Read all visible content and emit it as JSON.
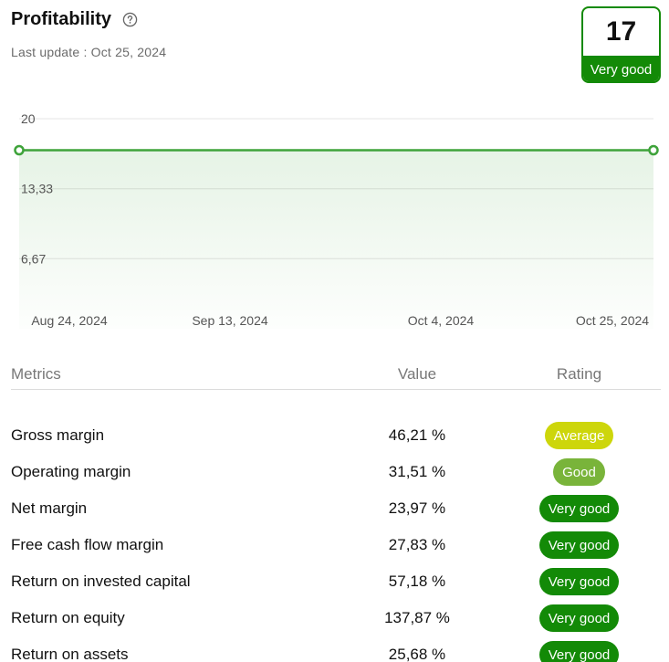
{
  "header": {
    "title": "Profitability",
    "last_update": "Last update : Oct 25, 2024"
  },
  "score": {
    "value": "17",
    "label": "Very good"
  },
  "chart_data": {
    "type": "area",
    "x": [
      "Aug 24, 2024",
      "Oct 25, 2024"
    ],
    "values": [
      17,
      17
    ],
    "x_ticks": [
      "Aug 24, 2024",
      "Sep 13, 2024",
      "Oct 4, 2024",
      "Oct 25, 2024"
    ],
    "y_ticks": [
      "20",
      "13,33",
      "6,67"
    ],
    "ylim": [
      0,
      20
    ],
    "grid": true,
    "color": "#3ea33a"
  },
  "table": {
    "headers": {
      "metric": "Metrics",
      "value": "Value",
      "rating": "Rating"
    },
    "rows": [
      {
        "metric": "Gross margin",
        "value": "46,21 %",
        "rating": "Average",
        "color": "#cdd60b"
      },
      {
        "metric": "Operating margin",
        "value": "31,51 %",
        "rating": "Good",
        "color": "#79b43a"
      },
      {
        "metric": "Net margin",
        "value": "23,97 %",
        "rating": "Very good",
        "color": "#138a07"
      },
      {
        "metric": "Free cash flow margin",
        "value": "27,83 %",
        "rating": "Very good",
        "color": "#138a07"
      },
      {
        "metric": "Return on invested capital",
        "value": "57,18 %",
        "rating": "Very good",
        "color": "#138a07"
      },
      {
        "metric": "Return on equity",
        "value": "137,87 %",
        "rating": "Very good",
        "color": "#138a07"
      },
      {
        "metric": "Return on assets",
        "value": "25,68 %",
        "rating": "Very good",
        "color": "#138a07"
      }
    ]
  }
}
